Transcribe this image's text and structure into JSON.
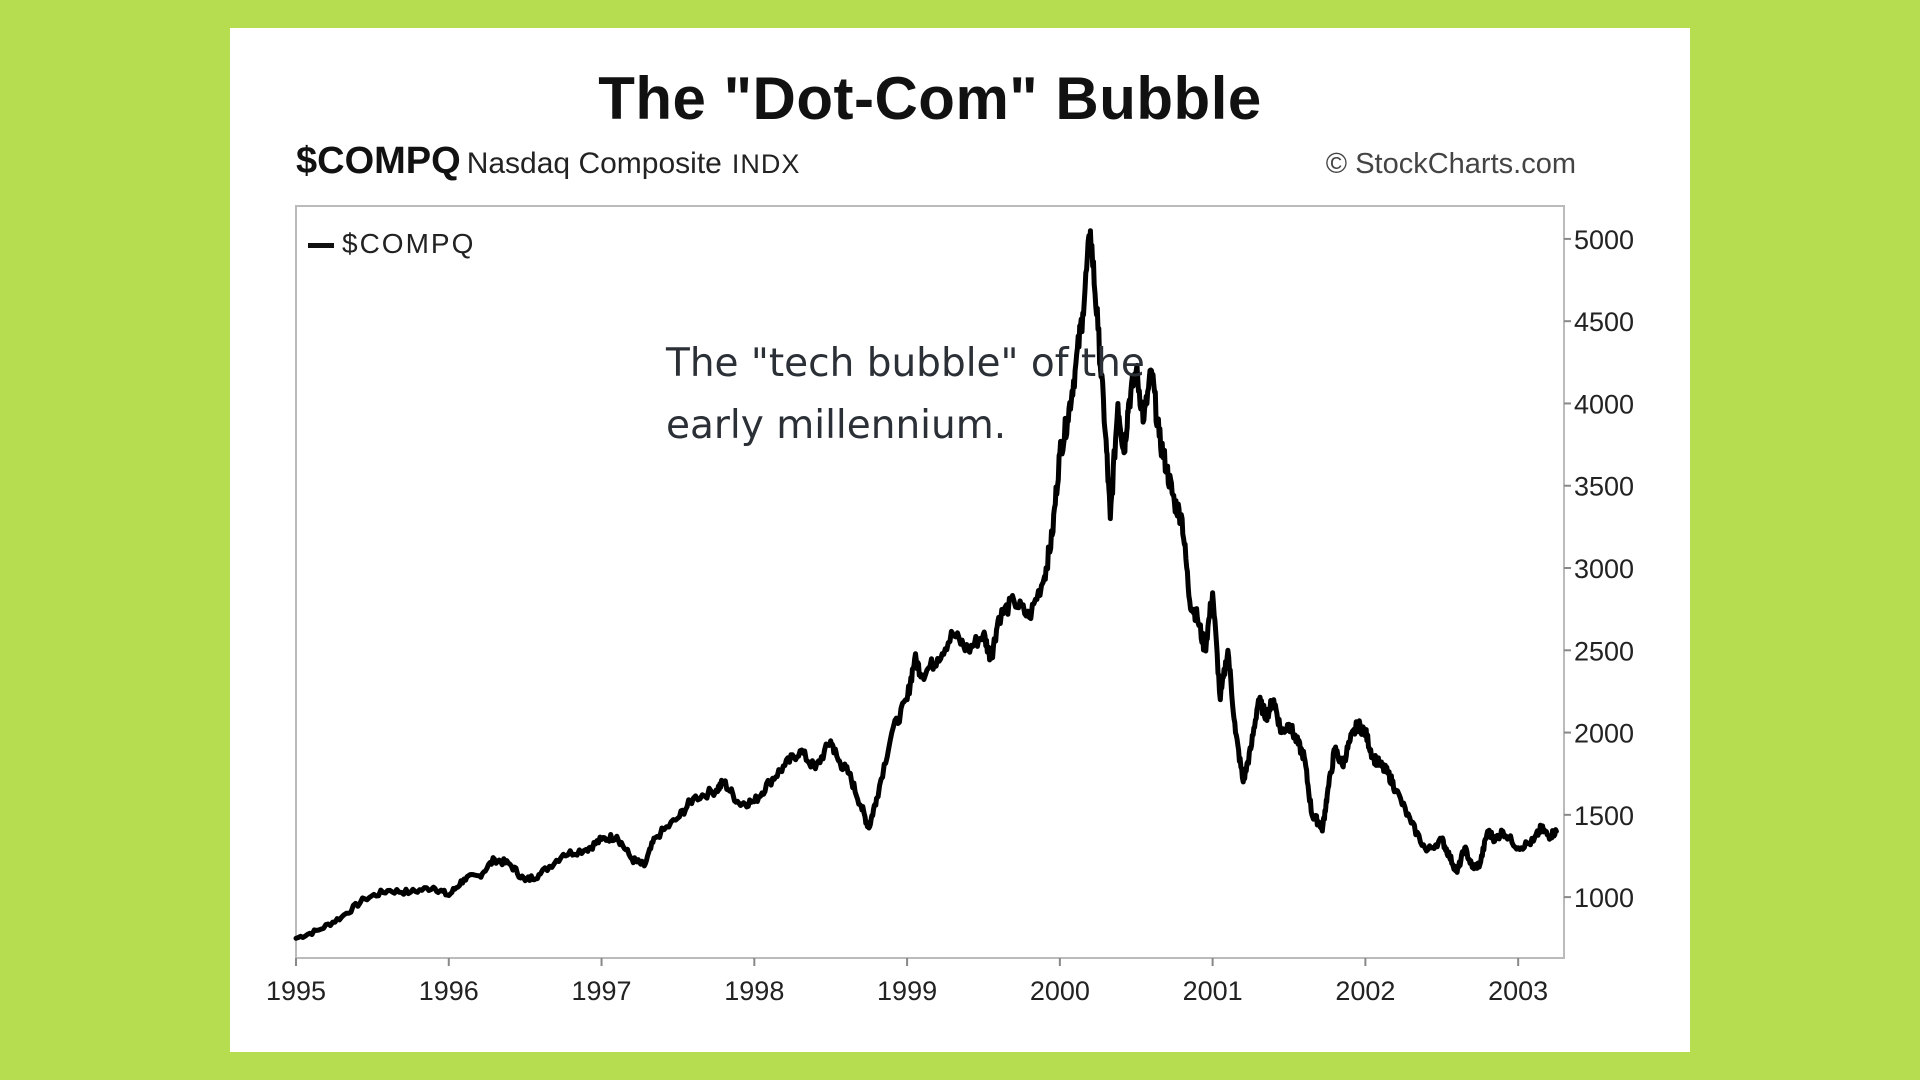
{
  "slide": {
    "title": "The \"Dot-Com\" Bubble"
  },
  "header": {
    "symbol": "$COMPQ",
    "name": "Nasdaq Composite",
    "type": "INDX",
    "copyright": "© StockCharts.com"
  },
  "annotation": {
    "line1": "The \"tech bubble\" of the",
    "line2": "early millennium."
  },
  "colors": {
    "background": "#b5dd4f",
    "line": "#000000",
    "panel": "#ffffff"
  },
  "chart_data": {
    "type": "line",
    "title": "The \"Dot-Com\" Bubble",
    "legend": [
      "$COMPQ"
    ],
    "legend_position": "top-left",
    "xlabel": "",
    "ylabel": "",
    "x_tick_labels": [
      "1995",
      "1996",
      "1997",
      "1998",
      "1999",
      "2000",
      "2001",
      "2002",
      "2003"
    ],
    "y_tick_labels": [
      "5000",
      "4500",
      "4000",
      "3500",
      "3000",
      "2500",
      "2000",
      "1500",
      "1000"
    ],
    "y_ticks": [
      5000,
      4500,
      4000,
      3500,
      3000,
      2500,
      2000,
      1500,
      1000
    ],
    "xlim": [
      1995.0,
      2003.3
    ],
    "ylim": [
      630,
      5200
    ],
    "grid": false,
    "series": [
      {
        "name": "$COMPQ",
        "x": [
          1995.0,
          1995.15,
          1995.3,
          1995.45,
          1995.6,
          1995.75,
          1995.9,
          1996.0,
          1996.1,
          1996.2,
          1996.3,
          1996.4,
          1996.5,
          1996.6,
          1996.75,
          1996.9,
          1997.0,
          1997.1,
          1997.2,
          1997.28,
          1997.35,
          1997.5,
          1997.6,
          1997.75,
          1997.8,
          1997.9,
          1998.0,
          1998.1,
          1998.2,
          1998.3,
          1998.4,
          1998.5,
          1998.55,
          1998.62,
          1998.7,
          1998.75,
          1998.8,
          1998.9,
          1999.0,
          1999.05,
          1999.1,
          1999.2,
          1999.3,
          1999.4,
          1999.5,
          1999.55,
          1999.6,
          1999.7,
          1999.8,
          1999.9,
          1999.95,
          2000.0,
          2000.05,
          2000.1,
          2000.15,
          2000.2,
          2000.25,
          2000.3,
          2000.33,
          2000.38,
          2000.42,
          2000.45,
          2000.5,
          2000.55,
          2000.6,
          2000.65,
          2000.7,
          2000.75,
          2000.8,
          2000.85,
          2000.9,
          2000.95,
          2001.0,
          2001.05,
          2001.1,
          2001.15,
          2001.2,
          2001.25,
          2001.3,
          2001.35,
          2001.4,
          2001.45,
          2001.5,
          2001.55,
          2001.6,
          2001.65,
          2001.7,
          2001.72,
          2001.75,
          2001.8,
          2001.85,
          2001.9,
          2001.95,
          2002.0,
          2002.05,
          2002.1,
          2002.15,
          2002.2,
          2002.3,
          2002.4,
          2002.5,
          2002.55,
          2002.6,
          2002.65,
          2002.7,
          2002.75,
          2002.8,
          2002.85,
          2002.9,
          2003.0,
          2003.1,
          2003.15,
          2003.2,
          2003.25
        ],
        "values": [
          750,
          800,
          880,
          990,
          1040,
          1030,
          1060,
          1010,
          1110,
          1130,
          1230,
          1200,
          1100,
          1140,
          1260,
          1290,
          1350,
          1370,
          1230,
          1190,
          1360,
          1480,
          1600,
          1650,
          1700,
          1570,
          1580,
          1700,
          1800,
          1890,
          1780,
          1950,
          1830,
          1750,
          1550,
          1420,
          1600,
          2000,
          2200,
          2450,
          2350,
          2450,
          2600,
          2500,
          2600,
          2450,
          2700,
          2800,
          2700,
          2950,
          3200,
          3700,
          3900,
          4200,
          4550,
          5050,
          4450,
          3800,
          3300,
          4000,
          3700,
          4000,
          4200,
          3900,
          4200,
          3800,
          3600,
          3400,
          3300,
          2800,
          2700,
          2500,
          2850,
          2200,
          2500,
          2000,
          1700,
          1900,
          2200,
          2100,
          2200,
          2000,
          2050,
          1950,
          1850,
          1500,
          1450,
          1420,
          1620,
          1900,
          1800,
          1950,
          2050,
          2000,
          1850,
          1800,
          1750,
          1650,
          1450,
          1280,
          1350,
          1250,
          1150,
          1300,
          1180,
          1200,
          1400,
          1350,
          1400,
          1300,
          1340,
          1420,
          1370,
          1400
        ]
      }
    ]
  }
}
